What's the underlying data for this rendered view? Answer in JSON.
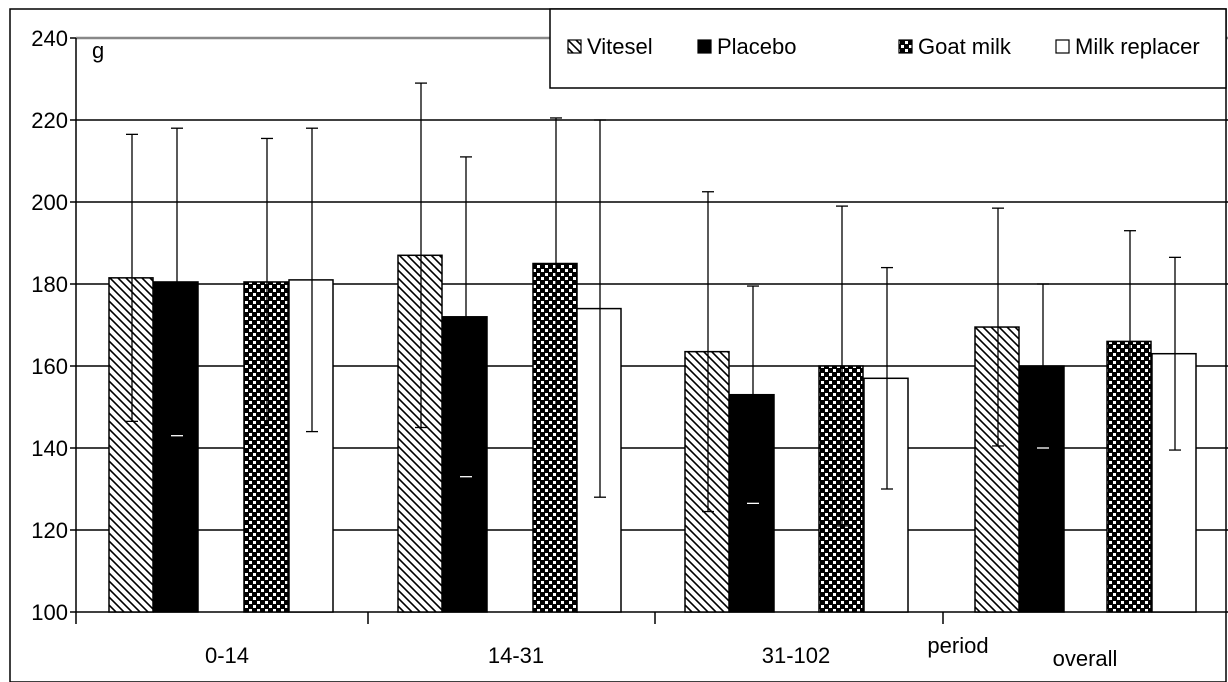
{
  "chart_data": {
    "type": "bar",
    "unit_label": "g",
    "xlabel": "period",
    "categories": [
      "0-14",
      "14-31",
      "31-102",
      "overall"
    ],
    "ylim": [
      100,
      240
    ],
    "yticks": [
      100,
      120,
      140,
      160,
      180,
      200,
      220,
      240
    ],
    "grid": "horizontal",
    "legend_position": "top-right",
    "series": [
      {
        "name": "Vitesel",
        "pattern": "diagonal-hatch",
        "values": [
          181.5,
          187,
          163.5,
          169.5
        ],
        "error": [
          35,
          42,
          39,
          29
        ]
      },
      {
        "name": "Placebo",
        "pattern": "solid-black",
        "values": [
          180.5,
          172,
          153,
          160
        ],
        "error": [
          37.5,
          39,
          26.5,
          20
        ]
      },
      {
        "name": "Goat milk",
        "pattern": "dotted",
        "values": [
          180.5,
          185,
          160,
          166
        ],
        "error": [
          35,
          35.5,
          39,
          27
        ]
      },
      {
        "name": "Milk replacer",
        "pattern": "white",
        "values": [
          181,
          174,
          157,
          163
        ],
        "error": [
          37,
          46,
          27,
          23.5
        ]
      }
    ]
  }
}
